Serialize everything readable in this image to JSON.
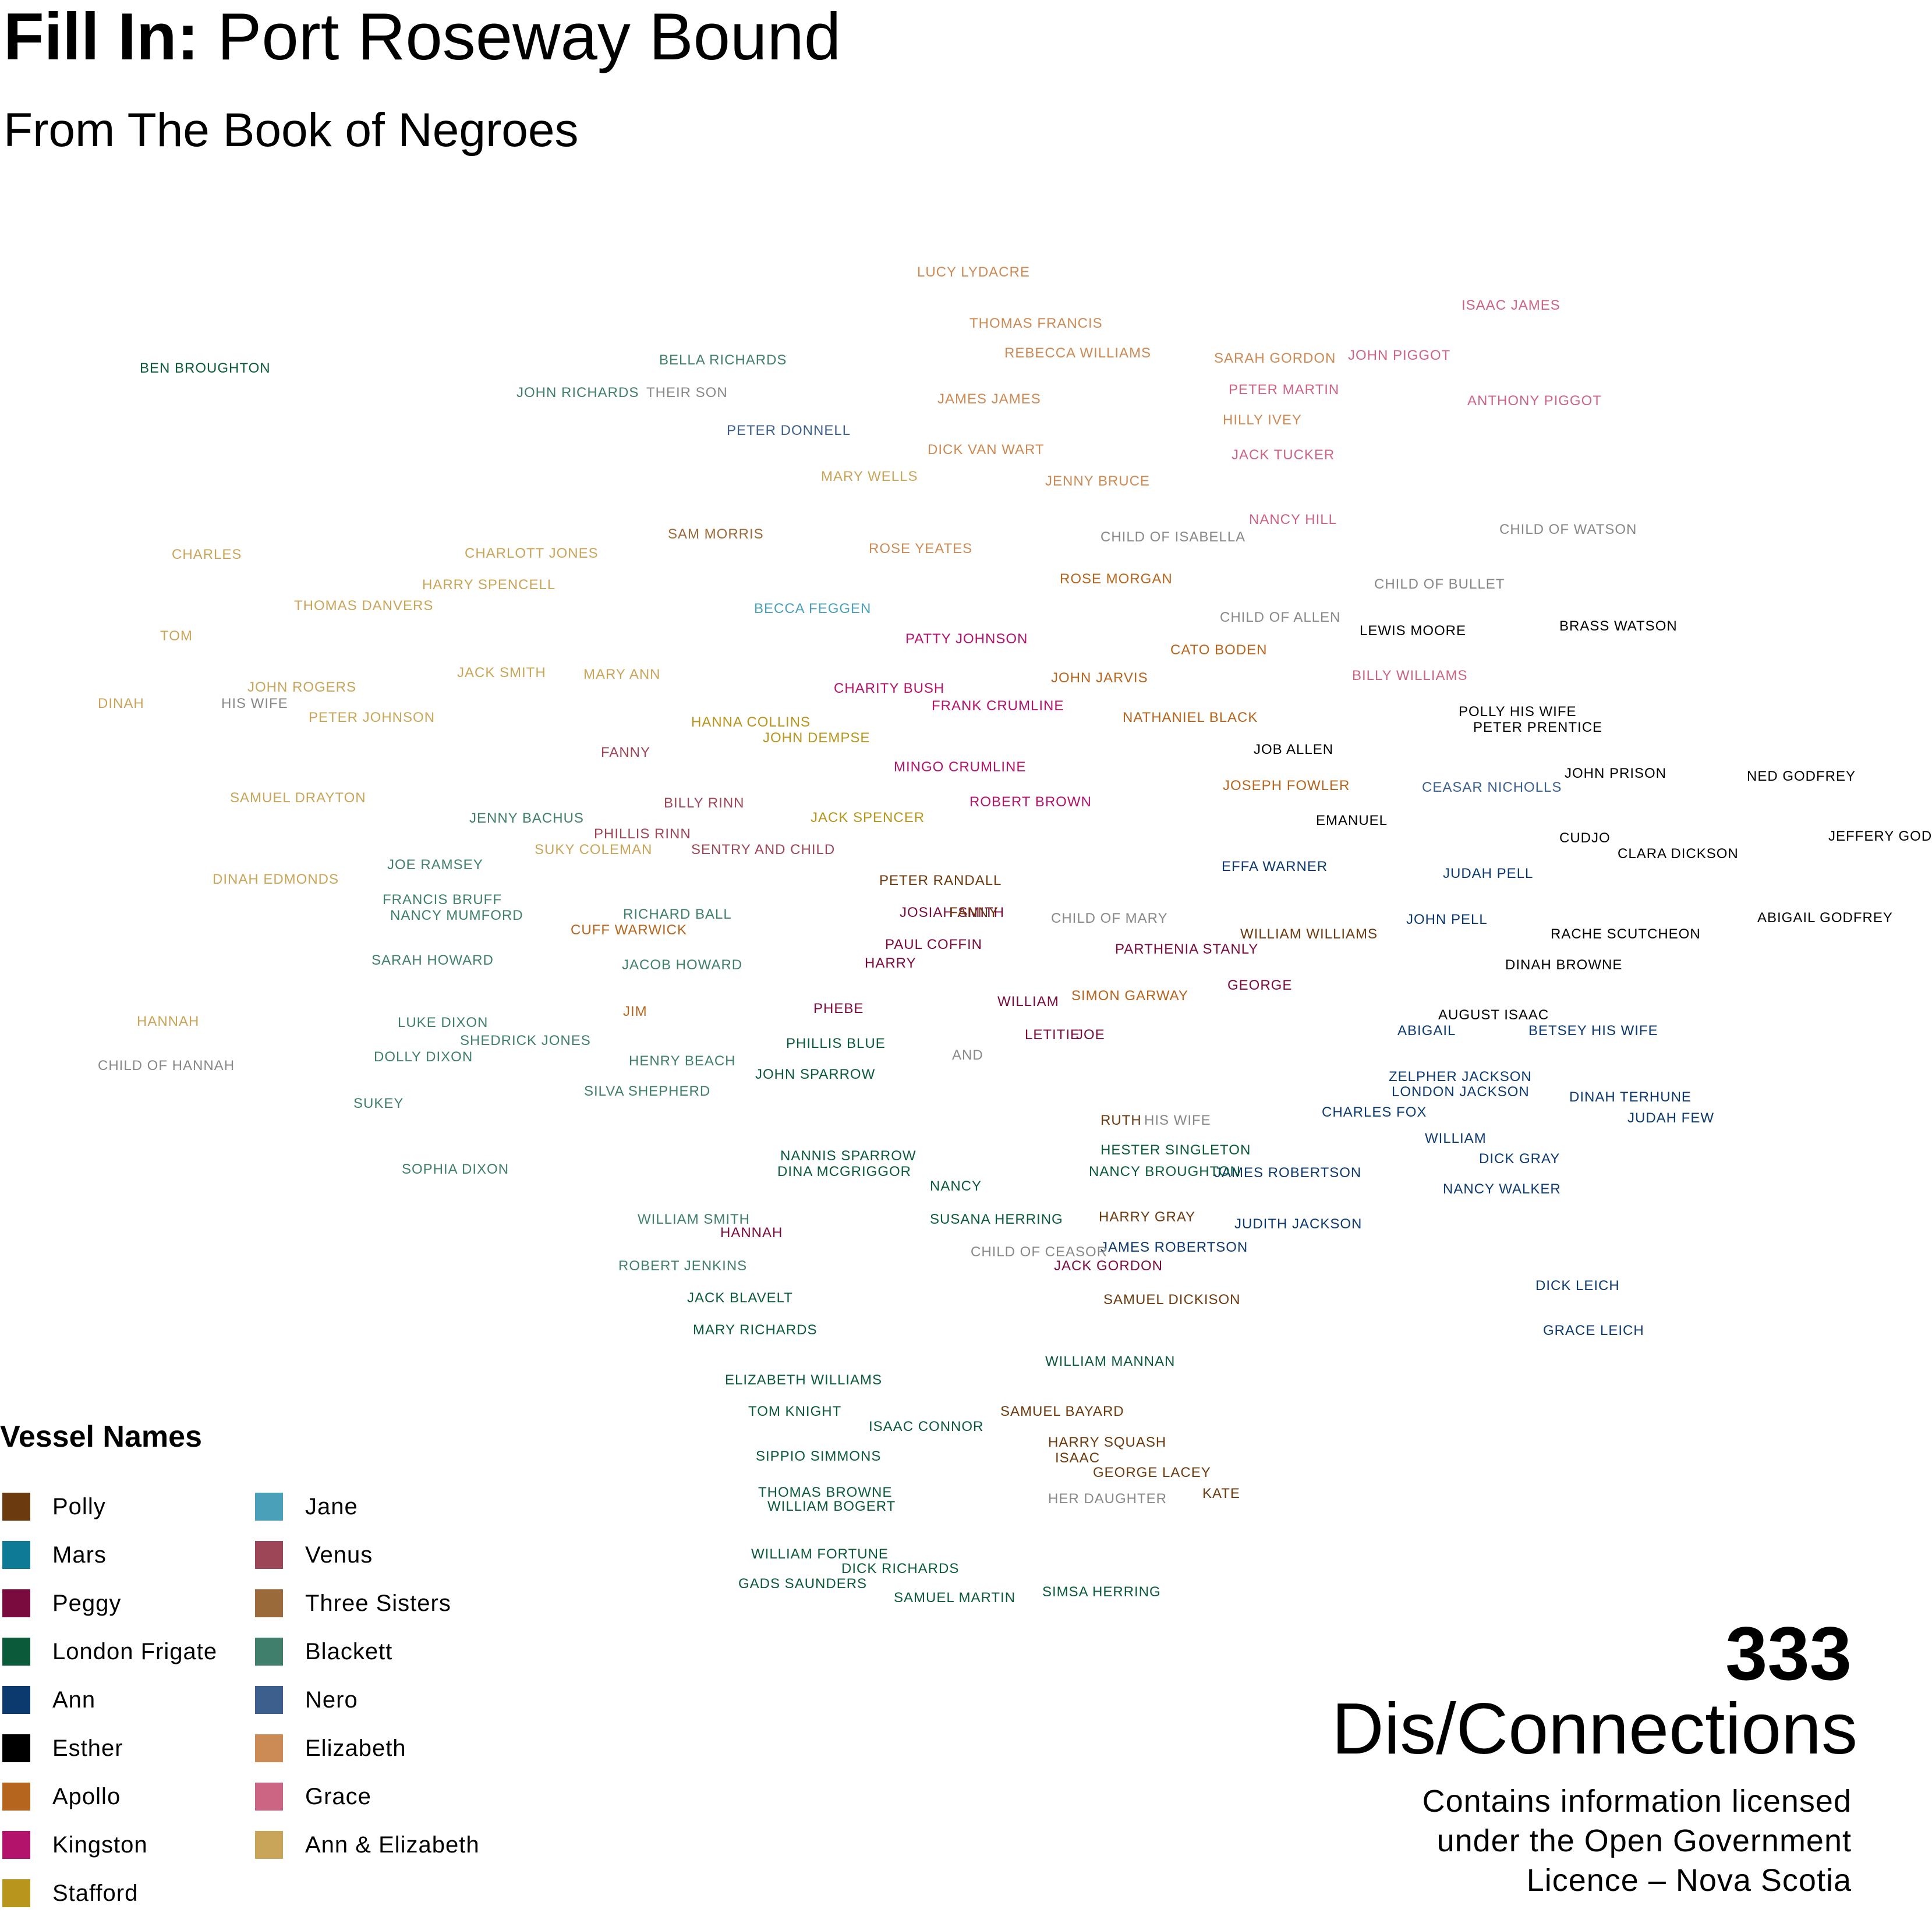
{
  "header": {
    "title_bold": "Fill In:",
    "title_rest": "Port Roseway Bound",
    "subtitle": "From The Book of Negroes"
  },
  "legend": {
    "title": "Vessel Names",
    "items": [
      {
        "label": "Polly",
        "color": "#6b3a0f"
      },
      {
        "label": "Jane",
        "color": "#4aa0b8"
      },
      {
        "label": "Mars",
        "color": "#0e7a96"
      },
      {
        "label": "Venus",
        "color": "#9c4658"
      },
      {
        "label": "Peggy",
        "color": "#7a0b3e"
      },
      {
        "label": "Three Sisters",
        "color": "#9b6a3a"
      },
      {
        "label": "London Frigate",
        "color": "#0b5a3a"
      },
      {
        "label": "Blackett",
        "color": "#3f7f6c"
      },
      {
        "label": "Ann",
        "color": "#0d3a6e"
      },
      {
        "label": "Nero",
        "color": "#3d5f8e"
      },
      {
        "label": "Esther",
        "color": "#000000"
      },
      {
        "label": "Elizabeth",
        "color": "#cc8a55"
      },
      {
        "label": "Apollo",
        "color": "#b5651d"
      },
      {
        "label": "Grace",
        "color": "#cc6584"
      },
      {
        "label": "Kingston",
        "color": "#b3136b"
      },
      {
        "label": "Ann & Elizabeth",
        "color": "#c9a55a"
      },
      {
        "label": "Stafford",
        "color": "#b8951c"
      }
    ]
  },
  "colors": {
    "sibling": "#888888"
  },
  "words": [
    {
      "t": "CHARLES",
      "c": "#c9a55a"
    },
    {
      "t": "TOM",
      "c": "#c9a55a"
    },
    {
      "t": "DINAH",
      "c": "#c9a55a"
    },
    {
      "t": "HIS WIFE",
      "c": "#888888"
    },
    {
      "t": "JOHN ROGERS",
      "c": "#c9a55a"
    },
    {
      "t": "THOMAS DANVERS",
      "c": "#c9a55a"
    },
    {
      "t": "CHARLOTT JONES",
      "c": "#c9a55a"
    },
    {
      "t": "HARRY SPENCELL",
      "c": "#c9a55a"
    },
    {
      "t": "JACK SMITH",
      "c": "#c9a55a"
    },
    {
      "t": "PETER JOHNSON",
      "c": "#c9a55a"
    },
    {
      "t": "SAMUEL DRAYTON",
      "c": "#c9a55a"
    },
    {
      "t": "DINAH EDMONDS",
      "c": "#c9a55a"
    },
    {
      "t": "HANNAH",
      "c": "#c9a55a"
    },
    {
      "t": "CHILD OF HANNAH",
      "c": "#888888"
    },
    {
      "t": "JOE RAMSEY",
      "c": "#3f7f6c"
    },
    {
      "t": "FRANCIS BRUFF",
      "c": "#3f7f6c"
    },
    {
      "t": "NANCY MUMFORD",
      "c": "#3f7f6c"
    },
    {
      "t": "SARAH HOWARD",
      "c": "#3f7f6c"
    },
    {
      "t": "LUKE DIXON",
      "c": "#3f7f6c"
    },
    {
      "t": "SHEDRICK JONES",
      "c": "#3f7f6c"
    },
    {
      "t": "DOLLY DIXON",
      "c": "#3f7f6c"
    },
    {
      "t": "SUKEY",
      "c": "#3f7f6c"
    },
    {
      "t": "SOPHIA DIXON",
      "c": "#3f7f6c"
    },
    {
      "t": "JENNY BACHUS",
      "c": "#3f7f6c"
    },
    {
      "t": "SUKY COLEMAN",
      "c": "#c9a55a"
    },
    {
      "t": "PHILLIS RINN",
      "c": "#9c4658"
    },
    {
      "t": "MARY ANN",
      "c": "#c9a55a"
    },
    {
      "t": "FANNY",
      "c": "#9c4658"
    },
    {
      "t": "BILLY RINN",
      "c": "#9c4658"
    },
    {
      "t": "SENTRY AND CHILD",
      "c": "#9c4658"
    },
    {
      "t": "RICHARD BALL",
      "c": "#3f7f6c"
    },
    {
      "t": "CUFF WARWICK",
      "c": "#b5651d"
    },
    {
      "t": "JACOB HOWARD",
      "c": "#3f7f6c"
    },
    {
      "t": "JIM",
      "c": "#b5651d"
    },
    {
      "t": "HENRY BEACH",
      "c": "#3f7f6c"
    },
    {
      "t": "SILVA SHEPHERD",
      "c": "#3f7f6c"
    },
    {
      "t": "WILLIAM SMITH",
      "c": "#3f7f6c"
    },
    {
      "t": "ROBERT JENKINS",
      "c": "#3f7f6c"
    },
    {
      "t": "JOHN RICHARDS",
      "c": "#3f7f6c"
    },
    {
      "t": "THEIR SON",
      "c": "#888888"
    },
    {
      "t": "BELLA RICHARDS",
      "c": "#3f7f6c"
    },
    {
      "t": "PETER DONNELL",
      "c": "#3d5f8e"
    },
    {
      "t": "SAM MORRIS",
      "c": "#9b6a3a"
    },
    {
      "t": "HANNA COLLINS",
      "c": "#b8951c"
    },
    {
      "t": "JOHN DEMPSE",
      "c": "#b8951c"
    },
    {
      "t": "BECCA FEGGEN",
      "c": "#4aa0b8"
    },
    {
      "t": "JACK SPENCER",
      "c": "#b8951c"
    },
    {
      "t": "MARY WELLS",
      "c": "#c9a55a"
    },
    {
      "t": "ROSE YEATES",
      "c": "#cc8a55"
    },
    {
      "t": "CHARITY BUSH",
      "c": "#b3136b"
    },
    {
      "t": "PATTY JOHNSON",
      "c": "#b3136b"
    },
    {
      "t": "FRANK CRUMLINE",
      "c": "#b3136b"
    },
    {
      "t": "MINGO CRUMLINE",
      "c": "#b3136b"
    },
    {
      "t": "ROBERT BROWN",
      "c": "#b3136b"
    },
    {
      "t": "LUCY LYDACRE",
      "c": "#cc8a55"
    },
    {
      "t": "THOMAS FRANCIS",
      "c": "#cc8a55"
    },
    {
      "t": "REBECCA WILLIAMS",
      "c": "#cc8a55"
    },
    {
      "t": "JAMES JAMES",
      "c": "#cc8a55"
    },
    {
      "t": "DICK VAN WART",
      "c": "#cc8a55"
    },
    {
      "t": "JENNY BRUCE",
      "c": "#cc8a55"
    },
    {
      "t": "ROSE MORGAN",
      "c": "#b5651d"
    },
    {
      "t": "JOHN JARVIS",
      "c": "#b5651d"
    },
    {
      "t": "NATHANIEL BLACK",
      "c": "#b5651d"
    },
    {
      "t": "CATO BODEN",
      "c": "#b5651d"
    },
    {
      "t": "JOSEPH FOWLER",
      "c": "#b5651d"
    },
    {
      "t": "SARAH GORDON",
      "c": "#cc8a55"
    },
    {
      "t": "PETER MARTIN",
      "c": "#cc6584"
    },
    {
      "t": "HILLY IVEY",
      "c": "#cc8a55"
    },
    {
      "t": "JACK TUCKER",
      "c": "#cc6584"
    },
    {
      "t": "NANCY HILL",
      "c": "#cc6584"
    },
    {
      "t": "CHILD OF ISABELLA",
      "c": "#888888"
    },
    {
      "t": "CHILD OF ALLEN",
      "c": "#888888"
    },
    {
      "t": "LEWIS MOORE",
      "c": "#000000"
    },
    {
      "t": "BILLY WILLIAMS",
      "c": "#cc6584"
    },
    {
      "t": "JOB ALLEN",
      "c": "#000000"
    },
    {
      "t": "EMANUEL",
      "c": "#000000"
    },
    {
      "t": "JOHN PIGGOT",
      "c": "#cc6584"
    },
    {
      "t": "ISAAC JAMES",
      "c": "#cc6584"
    },
    {
      "t": "ANTHONY PIGGOT",
      "c": "#cc6584"
    },
    {
      "t": "CHILD OF WATSON",
      "c": "#888888"
    },
    {
      "t": "CHILD OF BULLET",
      "c": "#888888"
    },
    {
      "t": "BRASS WATSON",
      "c": "#000000"
    },
    {
      "t": "POLLY HIS WIFE",
      "c": "#000000"
    },
    {
      "t": "PETER PRENTICE",
      "c": "#000000"
    },
    {
      "t": "JOHN PRISON",
      "c": "#000000"
    },
    {
      "t": "CEASAR NICHOLLS",
      "c": "#3d5f8e"
    },
    {
      "t": "CUDJO",
      "c": "#000000"
    },
    {
      "t": "EFFA WARNER",
      "c": "#0d3a6e"
    },
    {
      "t": "JUDAH PELL",
      "c": "#0d3a6e"
    },
    {
      "t": "JOHN PELL",
      "c": "#0d3a6e"
    },
    {
      "t": "CLARA DICKSON",
      "c": "#000000"
    },
    {
      "t": "NED GODFREY",
      "c": "#000000"
    },
    {
      "t": "JEFFERY GODFREY",
      "c": "#000000"
    },
    {
      "t": "ABIGAIL GODFREY",
      "c": "#000000"
    },
    {
      "t": "RACHE SCUTCHEON",
      "c": "#000000"
    },
    {
      "t": "DINAH BROWNE",
      "c": "#000000"
    },
    {
      "t": "AUGUST ISAAC",
      "c": "#000000"
    },
    {
      "t": "ABIGAIL",
      "c": "#0d3a6e"
    },
    {
      "t": "BETSEY HIS WIFE",
      "c": "#0d3a6e"
    },
    {
      "t": "ZELPHER JACKSON",
      "c": "#0d3a6e"
    },
    {
      "t": "LONDON JACKSON",
      "c": "#0d3a6e"
    },
    {
      "t": "DINAH TERHUNE",
      "c": "#0d3a6e"
    },
    {
      "t": "CHARLES FOX",
      "c": "#0d3a6e"
    },
    {
      "t": "JUDAH FEW",
      "c": "#0d3a6e"
    },
    {
      "t": "WILLIAM",
      "c": "#0d3a6e"
    },
    {
      "t": "DICK GRAY",
      "c": "#0d3a6e"
    },
    {
      "t": "NANCY WALKER",
      "c": "#0d3a6e"
    },
    {
      "t": "JAMES ROBERTSON",
      "c": "#0d3a6e"
    },
    {
      "t": "JUDITH JACKSON",
      "c": "#0d3a6e"
    },
    {
      "t": "DICK LEICH",
      "c": "#0d3a6e"
    },
    {
      "t": "GRACE LEICH",
      "c": "#0d3a6e"
    },
    {
      "t": "WILLIAM WILLIAMS",
      "c": "#6b3a0f"
    },
    {
      "t": "PARTHENIA STANLY",
      "c": "#7a0b3e"
    },
    {
      "t": "CHILD OF MARY",
      "c": "#888888"
    },
    {
      "t": "SIMON GARWAY",
      "c": "#b5651d"
    },
    {
      "t": "GEORGE",
      "c": "#7a0b3e"
    },
    {
      "t": "HESTER SINGLETON",
      "c": "#0b5a3a"
    },
    {
      "t": "NANCY BROUGHTON",
      "c": "#0b5a3a"
    },
    {
      "t": "RUTH",
      "c": "#6b3a0f"
    },
    {
      "t": "HIS WIFE",
      "c": "#888888"
    },
    {
      "t": "HARRY GRAY",
      "c": "#6b3a0f"
    },
    {
      "t": "JAMES ROBERTSON",
      "c": "#0d3a6e"
    },
    {
      "t": "SAMUEL DICKISON",
      "c": "#6b3a0f"
    },
    {
      "t": "WILLIAM MANNAN",
      "c": "#0b5a3a"
    },
    {
      "t": "SAMUEL BAYARD",
      "c": "#6b3a0f"
    },
    {
      "t": "HARRY SQUASH",
      "c": "#6b3a0f"
    },
    {
      "t": "ISAAC",
      "c": "#6b3a0f"
    },
    {
      "t": "GEORGE LACEY",
      "c": "#6b3a0f"
    },
    {
      "t": "KATE",
      "c": "#6b3a0f"
    },
    {
      "t": "HER DAUGHTER",
      "c": "#888888"
    },
    {
      "t": "SIMSA HERRING",
      "c": "#0b5a3a"
    },
    {
      "t": "PETER RANDALL",
      "c": "#6b3a0f"
    },
    {
      "t": "JOSIAH SMITH",
      "c": "#7a0b3e"
    },
    {
      "t": "FANNY",
      "c": "#6b3a0f"
    },
    {
      "t": "PAUL COFFIN",
      "c": "#7a0b3e"
    },
    {
      "t": "HARRY",
      "c": "#7a0b3e"
    },
    {
      "t": "WILLIAM",
      "c": "#7a0b3e"
    },
    {
      "t": "LETITIE",
      "c": "#7a0b3e"
    },
    {
      "t": "JOE",
      "c": "#7a0b3e"
    },
    {
      "t": "AND",
      "c": "#888888"
    },
    {
      "t": "PHEBE",
      "c": "#7a0b3e"
    },
    {
      "t": "PHILLIS BLUE",
      "c": "#0b5a3a"
    },
    {
      "t": "JOHN SPARROW",
      "c": "#0b5a3a"
    },
    {
      "t": "NANNIS SPARROW",
      "c": "#0b5a3a"
    },
    {
      "t": "DINA MCGRIGGOR",
      "c": "#0b5a3a"
    },
    {
      "t": "NANCY",
      "c": "#0b5a3a"
    },
    {
      "t": "SUSANA HERRING",
      "c": "#0b5a3a"
    },
    {
      "t": "CHILD OF CEASOR",
      "c": "#888888"
    },
    {
      "t": "JACK GORDON",
      "c": "#7a0b3e"
    },
    {
      "t": "HANNAH",
      "c": "#7a0b3e"
    },
    {
      "t": "JACK BLAVELT",
      "c": "#0b5a3a"
    },
    {
      "t": "MARY RICHARDS",
      "c": "#0b5a3a"
    },
    {
      "t": "ELIZABETH WILLIAMS",
      "c": "#0b5a3a"
    },
    {
      "t": "TOM KNIGHT",
      "c": "#0b5a3a"
    },
    {
      "t": "ISAAC CONNOR",
      "c": "#0b5a3a"
    },
    {
      "t": "SIPPIO SIMMONS",
      "c": "#0b5a3a"
    },
    {
      "t": "THOMAS BROWNE",
      "c": "#0b5a3a"
    },
    {
      "t": "WILLIAM BOGERT",
      "c": "#0b5a3a"
    },
    {
      "t": "WILLIAM FORTUNE",
      "c": "#0b5a3a"
    },
    {
      "t": "DICK RICHARDS",
      "c": "#0b5a3a"
    },
    {
      "t": "GADS SAUNDERS",
      "c": "#0b5a3a"
    },
    {
      "t": "SAMUEL MARTIN",
      "c": "#0b5a3a"
    },
    {
      "t": "BEN BROUGHTON",
      "c": "#0b5a3a"
    }
  ],
  "stats": {
    "count": "333",
    "count_label": "Dis/Connections"
  },
  "license": {
    "line1": "Contains information licensed",
    "line2": "under the Open Government",
    "line3": "Licence – Nova Scotia"
  }
}
